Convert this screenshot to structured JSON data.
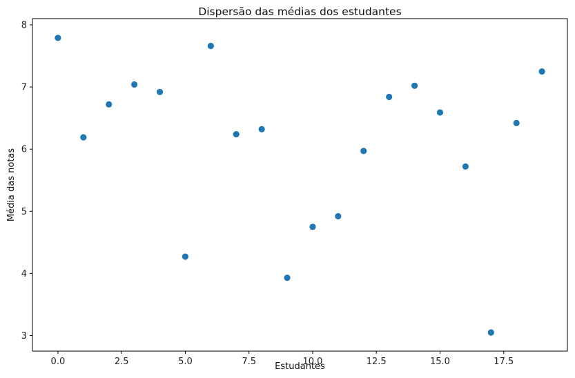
{
  "chart_data": {
    "type": "scatter",
    "title": "Dispersão das médias dos estudantes",
    "xlabel": "Estudantes",
    "ylabel": "Média das notas",
    "xlim": [
      -1.0,
      20.0
    ],
    "ylim": [
      2.75,
      8.1
    ],
    "xticks": [
      0.0,
      2.5,
      5.0,
      7.5,
      10.0,
      12.5,
      15.0,
      17.5
    ],
    "xtick_labels": [
      "0.0",
      "2.5",
      "5.0",
      "7.5",
      "10.0",
      "12.5",
      "15.0",
      "17.5"
    ],
    "yticks": [
      3,
      4,
      5,
      6,
      7,
      8
    ],
    "ytick_labels": [
      "3",
      "4",
      "5",
      "6",
      "7",
      "8"
    ],
    "grid": false,
    "marker_color": "#1f77b4",
    "x": [
      0,
      1,
      2,
      3,
      4,
      5,
      6,
      7,
      8,
      9,
      10,
      11,
      12,
      13,
      14,
      15,
      16,
      17,
      18,
      19
    ],
    "y": [
      7.79,
      6.19,
      6.72,
      7.04,
      6.92,
      4.27,
      7.66,
      6.24,
      6.32,
      3.93,
      4.75,
      4.92,
      5.97,
      6.84,
      7.02,
      6.59,
      5.72,
      3.05,
      6.42,
      7.25
    ]
  }
}
